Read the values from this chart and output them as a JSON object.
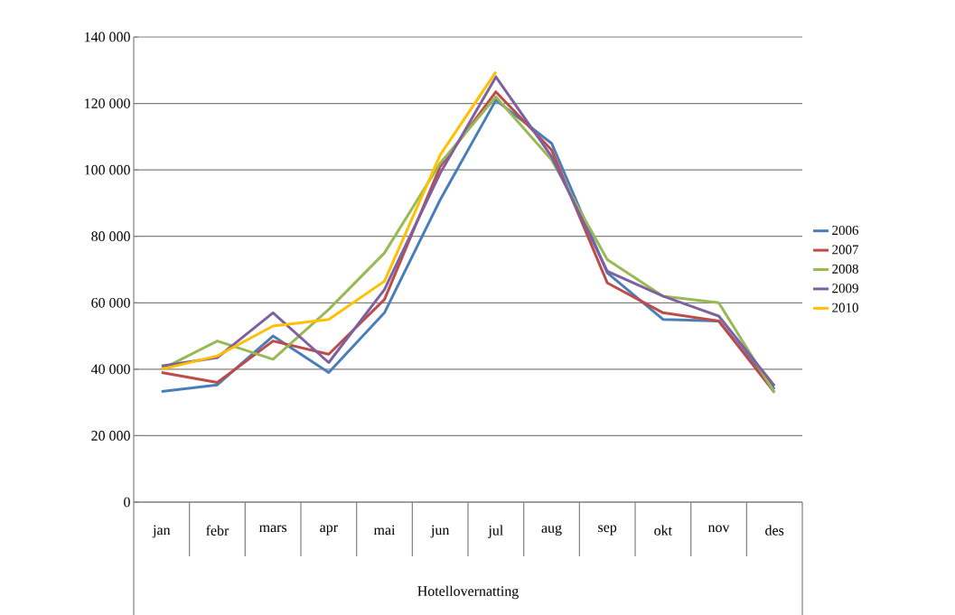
{
  "chart_data": {
    "type": "line",
    "xlabel": "Hotellovernatting",
    "categories": [
      "jan",
      "febr",
      "mars",
      "apr",
      "mai",
      "jun",
      "jul",
      "aug",
      "sep",
      "okt",
      "nov",
      "des"
    ],
    "series": [
      {
        "name": "2006",
        "color": "#4a7ebb",
        "values": [
          33300,
          35300,
          50000,
          39000,
          57000,
          91000,
          121000,
          108000,
          69000,
          55000,
          54500,
          34000
        ]
      },
      {
        "name": "2007",
        "color": "#be4b48",
        "values": [
          39000,
          36000,
          48500,
          44500,
          61000,
          101000,
          123500,
          106000,
          66000,
          57000,
          54500,
          33000
        ]
      },
      {
        "name": "2008",
        "color": "#98b954",
        "values": [
          40000,
          48500,
          43000,
          58000,
          75000,
          102000,
          122000,
          103000,
          73000,
          62000,
          60000,
          33000
        ]
      },
      {
        "name": "2009",
        "color": "#7d60a0",
        "values": [
          41000,
          43500,
          57000,
          42000,
          64000,
          99000,
          128000,
          104000,
          69500,
          62000,
          56000,
          35000
        ]
      },
      {
        "name": "2010",
        "color": "#ffc000",
        "values": [
          40000,
          44000,
          53000,
          55000,
          66500,
          104500,
          129500,
          null,
          null,
          null,
          null,
          null
        ]
      }
    ],
    "ylim": [
      0,
      140000
    ],
    "yticks": [
      0,
      {
        "value": 20000,
        "label": "20 000"
      },
      {
        "value": 40000,
        "label": "40 000"
      },
      {
        "value": 60000,
        "label": "60 000"
      },
      {
        "value": 80000,
        "label": "80 000"
      },
      {
        "value": 100000,
        "label": "100 000"
      },
      {
        "value": 120000,
        "label": "120 000"
      },
      {
        "value": 140000,
        "label": "140 000"
      }
    ],
    "grid": "y",
    "legend": "right",
    "marker": "none",
    "line_style": "solid"
  }
}
